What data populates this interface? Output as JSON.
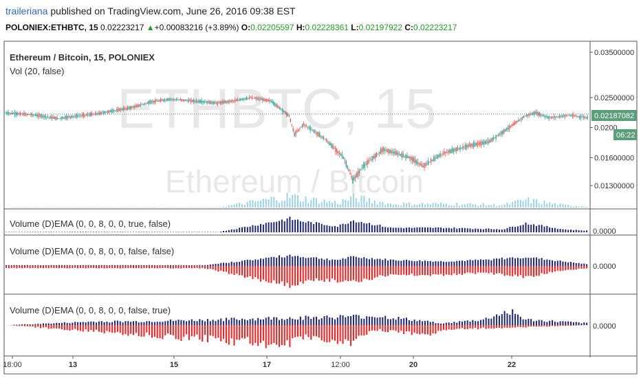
{
  "header": {
    "user": "traileriana",
    "published_text": " published on TradingView.com, June 26, 2016 09:38 EST",
    "symbol": "POLONIEX:ETHBTC, 15",
    "last": "0.02223217",
    "change": "+0.00083216 (+3.89%)",
    "open_label": "O:",
    "open": "0.02205597",
    "high_label": "H:",
    "high": "0.02228361",
    "low_label": "L:",
    "low": "0.02197922",
    "close_label": "C:",
    "close": "0.02223217"
  },
  "main_pane": {
    "title": "Ethereum / Bitcoin, 15, POLONIEX",
    "subtitle": "Vol (20, false)",
    "watermark_symbol": "ETHBTC, 15",
    "watermark_name": "Ethereum / Bitcoin",
    "price_badge": "0.02187082",
    "time_badge": "06:22",
    "badge_color": "#5a9e7a"
  },
  "panes": [
    {
      "label": "Volume (D)EMA (0, 0, 8, 0, 0, true, false)",
      "axis": "0.0000"
    },
    {
      "label": "Volume (D)EMA (0, 0, 8, 0, 0, false, false)",
      "axis": "0.0000"
    },
    {
      "label": "Volume (D)EMA (0, 0, 8, 0, 0, false, true)",
      "axis": "0.0000"
    }
  ],
  "colors": {
    "up": "#26a69a",
    "down": "#ef5350",
    "positive": "#1a237e",
    "negative": "#ff1a1a",
    "volume": "#7fc8e8",
    "line": "#3e8e5e"
  },
  "chart_data": {
    "type": "candlestick",
    "y_ticks": [
      "0.03500000",
      "0.02500000",
      "0.0200",
      "0.01600000",
      "0.01300000"
    ],
    "y_tick_values": [
      0.035,
      0.025,
      0.02,
      0.016,
      0.013
    ],
    "y_scale": "log",
    "x_ticks": [
      "18:00",
      "13",
      "15",
      "17",
      "12:00",
      "20",
      "22"
    ],
    "price_path": [
      [
        0,
        0.0223
      ],
      [
        20,
        0.022
      ],
      [
        40,
        0.0214
      ],
      [
        50,
        0.0217
      ],
      [
        70,
        0.0222
      ],
      [
        95,
        0.0232
      ],
      [
        110,
        0.0242
      ],
      [
        125,
        0.0247
      ],
      [
        140,
        0.0244
      ],
      [
        160,
        0.024
      ],
      [
        175,
        0.0245
      ],
      [
        185,
        0.025
      ],
      [
        200,
        0.0244
      ],
      [
        214,
        0.0218
      ],
      [
        218,
        0.019
      ],
      [
        225,
        0.0205
      ],
      [
        240,
        0.0185
      ],
      [
        255,
        0.016
      ],
      [
        262,
        0.0135
      ],
      [
        270,
        0.015
      ],
      [
        285,
        0.017
      ],
      [
        295,
        0.0165
      ],
      [
        305,
        0.016
      ],
      [
        315,
        0.015
      ],
      [
        330,
        0.0165
      ],
      [
        350,
        0.0175
      ],
      [
        365,
        0.018
      ],
      [
        380,
        0.02
      ],
      [
        392,
        0.0218
      ],
      [
        400,
        0.0223
      ],
      [
        410,
        0.0215
      ],
      [
        425,
        0.0219
      ],
      [
        440,
        0.0215
      ]
    ],
    "volume_pane_peaks": [
      [
        0,
        0.02
      ],
      [
        60,
        0.03
      ],
      [
        160,
        0.02
      ],
      [
        214,
        0.9
      ],
      [
        225,
        0.7
      ],
      [
        250,
        0.4
      ],
      [
        262,
        0.8
      ],
      [
        290,
        0.3
      ],
      [
        330,
        0.3
      ],
      [
        375,
        0.2
      ],
      [
        392,
        0.6
      ],
      [
        420,
        0.2
      ],
      [
        440,
        0.1
      ]
    ],
    "dema_pane2_pos": [
      [
        0,
        0.05
      ],
      [
        150,
        0.05
      ],
      [
        214,
        0.7
      ],
      [
        225,
        0.6
      ],
      [
        250,
        0.4
      ],
      [
        262,
        0.6
      ],
      [
        290,
        0.4
      ],
      [
        330,
        0.3
      ],
      [
        360,
        0.4
      ],
      [
        392,
        0.6
      ],
      [
        420,
        0.3
      ],
      [
        440,
        0.1
      ]
    ],
    "dema_pane2_neg": [
      [
        0,
        0.1
      ],
      [
        150,
        0.1
      ],
      [
        214,
        0.9
      ],
      [
        230,
        0.6
      ],
      [
        262,
        0.7
      ],
      [
        290,
        0.4
      ],
      [
        330,
        0.4
      ],
      [
        360,
        0.3
      ],
      [
        392,
        0.5
      ],
      [
        420,
        0.2
      ],
      [
        440,
        0.1
      ]
    ],
    "dema_pane3_pos": [
      [
        0,
        0.0
      ],
      [
        70,
        0.2
      ],
      [
        100,
        0.2
      ],
      [
        214,
        0.4
      ],
      [
        280,
        0.5
      ],
      [
        330,
        0.1
      ],
      [
        360,
        0.3
      ],
      [
        380,
        0.8
      ],
      [
        392,
        0.3
      ],
      [
        440,
        0.1
      ]
    ],
    "dema_pane3_neg": [
      [
        0,
        0.0
      ],
      [
        214,
        0.9
      ],
      [
        225,
        0.5
      ],
      [
        262,
        0.8
      ],
      [
        275,
        0.2
      ],
      [
        320,
        0.5
      ],
      [
        330,
        0.2
      ],
      [
        440,
        0.0
      ]
    ]
  }
}
